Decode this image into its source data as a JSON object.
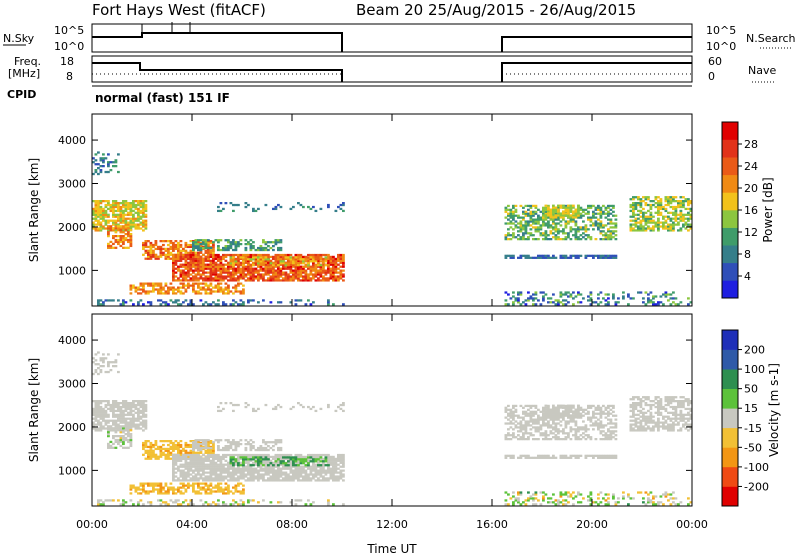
{
  "header": {
    "title": "Fort Hays West (fitACF)",
    "beam_date": "Beam 20  25/Aug/2015 - 26/Aug/2015"
  },
  "colors": {
    "power_scale": [
      "#1f1fe0",
      "#2f4fb8",
      "#357e8a",
      "#3f9c6a",
      "#8cc63f",
      "#f2c21b",
      "#f08a14",
      "#ea5a17",
      "#e23219",
      "#e00000"
    ],
    "velocity_scale": [
      "#e00000",
      "#ef4a14",
      "#f39614",
      "#f2c035",
      "#c8c8c0",
      "#5cc23a",
      "#2e8f50",
      "#2f5aa8",
      "#1f2fb8"
    ]
  },
  "panels": {
    "nsky": {
      "label": "N.Sky",
      "ticks": [
        "10^5",
        "10^0"
      ],
      "right_label": "N.Search",
      "right_ticks": [
        "10^5",
        "10^0"
      ]
    },
    "freq": {
      "label_lines": [
        "Freq.",
        "[MHz]"
      ],
      "ticks": [
        "18",
        "8"
      ],
      "right_label": "Nave",
      "right_ticks": [
        "60",
        "0"
      ]
    },
    "cpid": {
      "label": "CPID",
      "text": "normal (fast) 151 IF"
    }
  },
  "chart_data": [
    {
      "type": "heatmap",
      "title": "",
      "xlabel": "",
      "ylabel": "Slant Range [km]",
      "x_ticks": [
        "00:00",
        "04:00",
        "08:00",
        "12:00",
        "16:00",
        "20:00",
        "00:00"
      ],
      "y_ticks": [
        "1000",
        "2000",
        "3000",
        "4000"
      ],
      "ylim": [
        180,
        4600
      ],
      "colorbar": {
        "label": "Power [dB]",
        "ticks": [
          "4",
          "8",
          "12",
          "16",
          "20",
          "24",
          "28"
        ]
      },
      "data_gap_ut": [
        10.0,
        16.5
      ]
    },
    {
      "type": "heatmap",
      "title": "",
      "xlabel": "Time UT",
      "ylabel": "Slant Range [km]",
      "x_ticks": [
        "00:00",
        "04:00",
        "08:00",
        "12:00",
        "16:00",
        "20:00",
        "00:00"
      ],
      "y_ticks": [
        "1000",
        "2000",
        "3000",
        "4000"
      ],
      "ylim": [
        180,
        4600
      ],
      "colorbar": {
        "label": "Velocity [m s-1]",
        "ticks": [
          "200",
          "100",
          "50",
          "15",
          "-15",
          "-50",
          "-100",
          "-200"
        ]
      },
      "data_gap_ut": [
        10.0,
        16.5
      ]
    }
  ]
}
